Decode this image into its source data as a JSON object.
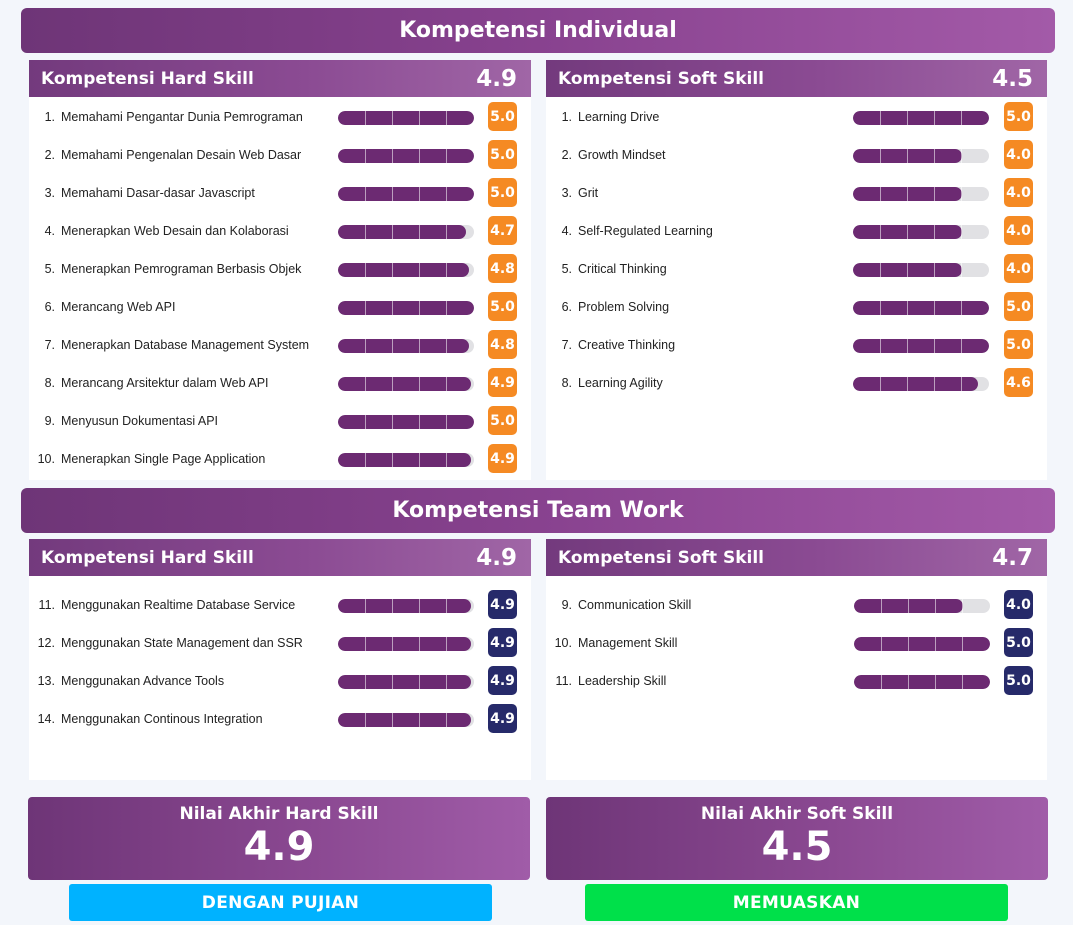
{
  "individual": {
    "title": "Kompetensi Individual",
    "hard": {
      "title": "Kompetensi Hard Skill",
      "score": "4.9",
      "items": [
        {
          "num": "1.",
          "label": "Memahami Pengantar Dunia Pemrograman",
          "value": 5.0,
          "score": "5.0"
        },
        {
          "num": "2.",
          "label": "Memahami Pengenalan Desain Web Dasar",
          "value": 5.0,
          "score": "5.0"
        },
        {
          "num": "3.",
          "label": "Memahami Dasar-dasar Javascript",
          "value": 5.0,
          "score": "5.0"
        },
        {
          "num": "4.",
          "label": "Menerapkan Web Desain dan Kolaborasi",
          "value": 4.7,
          "score": "4.7"
        },
        {
          "num": "5.",
          "label": "Menerapkan Pemrograman Berbasis Objek",
          "value": 4.8,
          "score": "4.8"
        },
        {
          "num": "6.",
          "label": "Merancang Web API",
          "value": 5.0,
          "score": "5.0"
        },
        {
          "num": "7.",
          "label": "Menerapkan Database Management System",
          "value": 4.8,
          "score": "4.8"
        },
        {
          "num": "8.",
          "label": "Merancang Arsitektur dalam Web API",
          "value": 4.9,
          "score": "4.9"
        },
        {
          "num": "9.",
          "label": "Menyusun Dokumentasi API",
          "value": 5.0,
          "score": "5.0"
        },
        {
          "num": "10.",
          "label": "Menerapkan Single Page Application",
          "value": 4.9,
          "score": "4.9"
        }
      ]
    },
    "soft": {
      "title": "Kompetensi Soft Skill",
      "score": "4.5",
      "items": [
        {
          "num": "1.",
          "label": "Learning Drive",
          "value": 5.0,
          "score": "5.0"
        },
        {
          "num": "2.",
          "label": "Growth Mindset",
          "value": 4.0,
          "score": "4.0"
        },
        {
          "num": "3.",
          "label": "Grit",
          "value": 4.0,
          "score": "4.0"
        },
        {
          "num": "4.",
          "label": "Self-Regulated Learning",
          "value": 4.0,
          "score": "4.0"
        },
        {
          "num": "5.",
          "label": "Critical Thinking",
          "value": 4.0,
          "score": "4.0"
        },
        {
          "num": "6.",
          "label": "Problem Solving",
          "value": 5.0,
          "score": "5.0"
        },
        {
          "num": "7.",
          "label": "Creative Thinking",
          "value": 5.0,
          "score": "5.0"
        },
        {
          "num": "8.",
          "label": "Learning Agility",
          "value": 4.6,
          "score": "4.6"
        }
      ]
    }
  },
  "teamwork": {
    "title": "Kompetensi Team Work",
    "hard": {
      "title": "Kompetensi Hard Skill",
      "score": "4.9",
      "items": [
        {
          "num": "11.",
          "label": "Menggunakan Realtime Database Service",
          "value": 4.9,
          "score": "4.9"
        },
        {
          "num": "12.",
          "label": "Menggunakan State Management dan SSR",
          "value": 4.9,
          "score": "4.9"
        },
        {
          "num": "13.",
          "label": "Menggunakan Advance Tools",
          "value": 4.9,
          "score": "4.9"
        },
        {
          "num": "14.",
          "label": "Menggunakan Continous Integration",
          "value": 4.9,
          "score": "4.9"
        }
      ]
    },
    "soft": {
      "title": "Kompetensi Soft Skill",
      "score": "4.7",
      "items": [
        {
          "num": "9.",
          "label": "Communication Skill",
          "value": 4.0,
          "score": "4.0"
        },
        {
          "num": "10.",
          "label": "Management Skill",
          "value": 5.0,
          "score": "5.0"
        },
        {
          "num": "11.",
          "label": "Leadership Skill",
          "value": 5.0,
          "score": "5.0"
        }
      ]
    }
  },
  "final": {
    "hard": {
      "title": "Nilai Akhir Hard Skill",
      "score": "4.9",
      "predicate": "DENGAN PUJIAN",
      "predicate_color": "#00b2ff"
    },
    "soft": {
      "title": "Nilai Akhir Soft Skill",
      "score": "4.5",
      "predicate": "MEMUASKAN",
      "predicate_color": "#00e04a"
    }
  },
  "colors": {
    "bar_fill": "#6c2a72",
    "badge_individual": "#f58a23",
    "badge_team": "#262a6a"
  },
  "max_score": 5
}
